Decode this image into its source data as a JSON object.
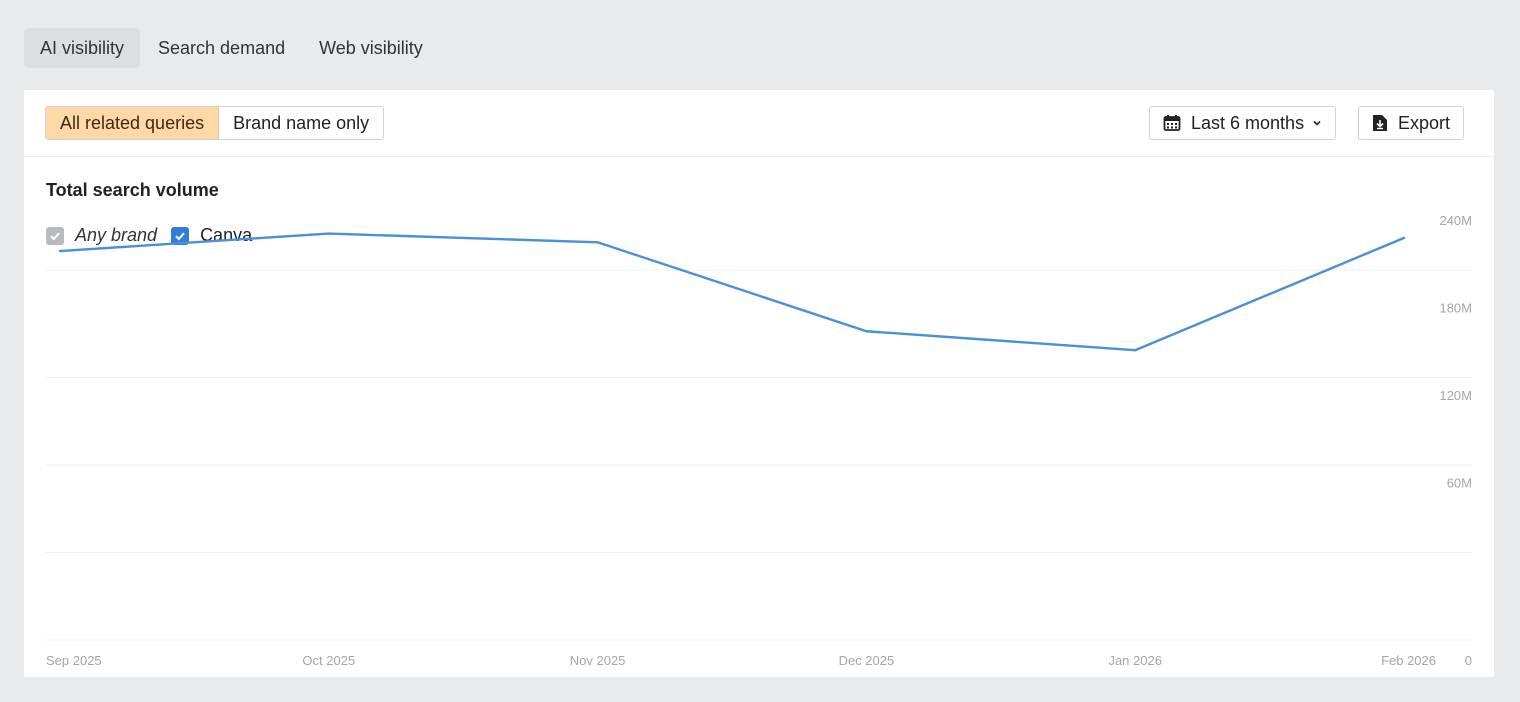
{
  "tabs": [
    {
      "label": "AI visibility",
      "active": true
    },
    {
      "label": "Search demand",
      "active": false
    },
    {
      "label": "Web visibility",
      "active": false
    }
  ],
  "toolbar": {
    "segments": [
      {
        "label": "All related queries",
        "active": true
      },
      {
        "label": "Brand name only",
        "active": false
      }
    ],
    "period_label": "Last 6 months",
    "export_label": "Export"
  },
  "colors": {
    "accent_segment": "#ffd8a8",
    "series_line": "#4a90d9",
    "checkbox_blue": "#2f7fd8",
    "checkbox_grey": "#b8babd"
  },
  "chart_data": {
    "type": "line",
    "title": "Total search volume",
    "legend": [
      {
        "label": "Any brand",
        "checked": true,
        "disabled": true
      },
      {
        "label": "Canva",
        "checked": true
      }
    ],
    "categories": [
      "Sep 2025",
      "Oct 2025",
      "Nov 2025",
      "Dec 2025",
      "Jan 2026",
      "Feb 2026"
    ],
    "series": [
      {
        "name": "Canva",
        "values": [
          229,
          241,
          235,
          174,
          161,
          238
        ]
      }
    ],
    "y_ticks": [
      {
        "value": 0,
        "label": "0"
      },
      {
        "value": 60,
        "label": "60M"
      },
      {
        "value": 120,
        "label": "120M"
      },
      {
        "value": 180,
        "label": "180M"
      },
      {
        "value": 240,
        "label": "240M"
      }
    ],
    "ylim": [
      0,
      240
    ],
    "grid": true,
    "y_axis_side": "right"
  }
}
